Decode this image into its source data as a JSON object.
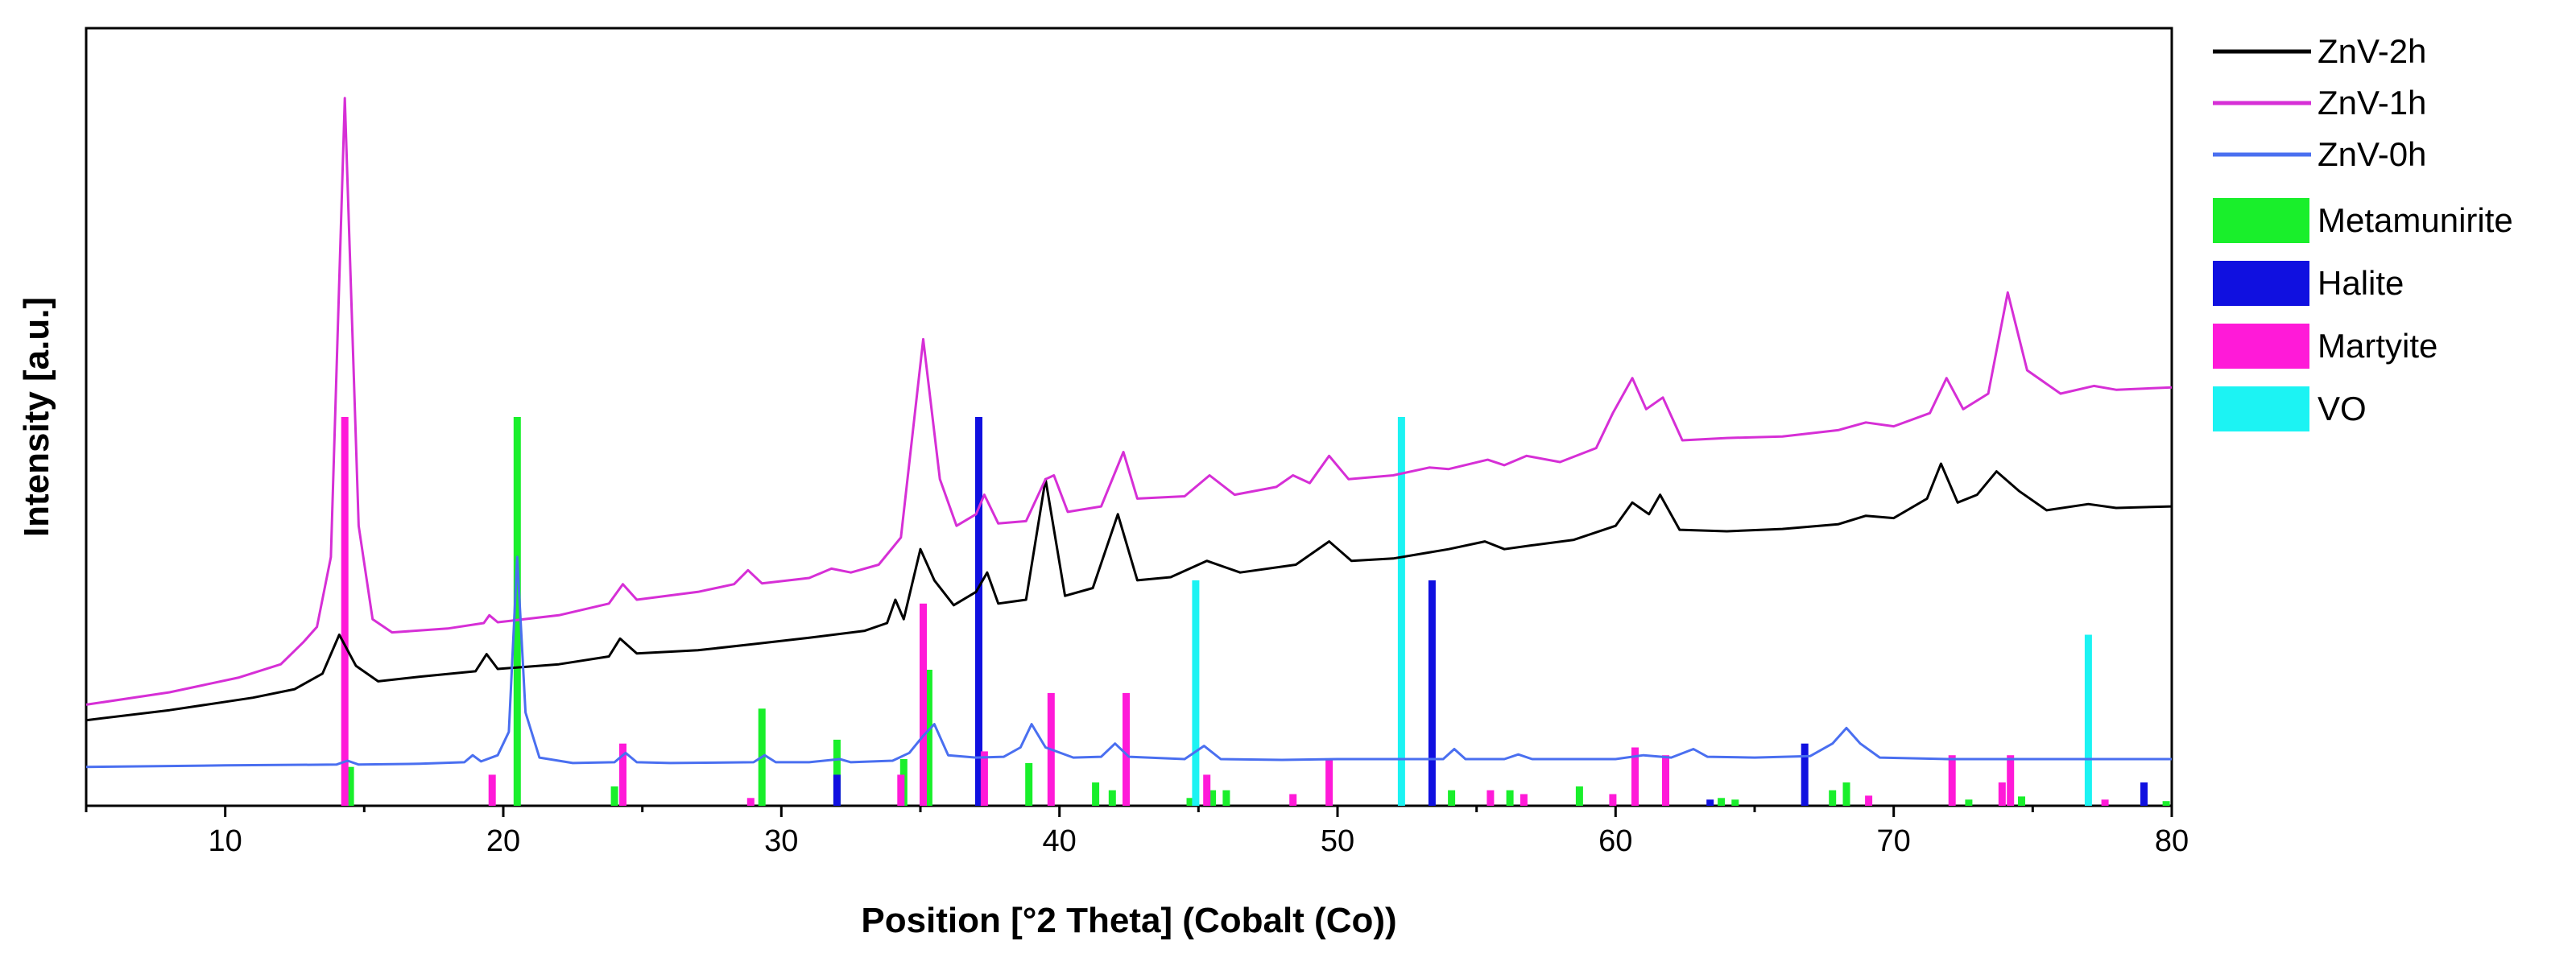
{
  "chart_data": {
    "type": "line",
    "xlabel": "Position [°2 Theta] (Cobalt (Co))",
    "ylabel": "Intensity [a.u.]",
    "xlim": [
      5,
      80
    ],
    "ylim": [
      0,
      100
    ],
    "y_ticks_shown": false,
    "grid": false,
    "legend_position": "outside-right",
    "x_ticks": [
      10,
      20,
      30,
      40,
      50,
      60,
      70,
      80
    ],
    "series": [
      {
        "name": "ZnV-2h",
        "color": "#000000",
        "points": [
          [
            5,
            11.0
          ],
          [
            8,
            12.3
          ],
          [
            11,
            13.9
          ],
          [
            12.5,
            15.0
          ],
          [
            13.5,
            17.0
          ],
          [
            14.1,
            22.0
          ],
          [
            14.7,
            18.0
          ],
          [
            15.5,
            16.0
          ],
          [
            17,
            16.6
          ],
          [
            19,
            17.3
          ],
          [
            19.4,
            19.5
          ],
          [
            19.8,
            17.6
          ],
          [
            22,
            18.2
          ],
          [
            23.8,
            19.2
          ],
          [
            24.2,
            21.5
          ],
          [
            24.8,
            19.6
          ],
          [
            27,
            20.0
          ],
          [
            29,
            20.8
          ],
          [
            31,
            21.6
          ],
          [
            33,
            22.5
          ],
          [
            33.8,
            23.5
          ],
          [
            34.1,
            26.5
          ],
          [
            34.4,
            24.0
          ],
          [
            35.0,
            33.0
          ],
          [
            35.5,
            29.0
          ],
          [
            36.2,
            25.8
          ],
          [
            37.0,
            27.5
          ],
          [
            37.4,
            30.0
          ],
          [
            37.8,
            26.0
          ],
          [
            38.8,
            26.5
          ],
          [
            39.5,
            42.0
          ],
          [
            40.2,
            27.0
          ],
          [
            41.2,
            28.0
          ],
          [
            42.1,
            37.5
          ],
          [
            42.8,
            29.0
          ],
          [
            44,
            29.4
          ],
          [
            45.3,
            31.5
          ],
          [
            46.5,
            30.0
          ],
          [
            48.5,
            31.0
          ],
          [
            49.7,
            34.0
          ],
          [
            50.5,
            31.5
          ],
          [
            52,
            31.8
          ],
          [
            54,
            33.0
          ],
          [
            55.3,
            34.0
          ],
          [
            56,
            33.0
          ],
          [
            57,
            33.5
          ],
          [
            58.5,
            34.2
          ],
          [
            60,
            36.0
          ],
          [
            60.6,
            39.0
          ],
          [
            61.2,
            37.5
          ],
          [
            61.6,
            40.0
          ],
          [
            62.3,
            35.5
          ],
          [
            64,
            35.3
          ],
          [
            66,
            35.6
          ],
          [
            68,
            36.2
          ],
          [
            69,
            37.3
          ],
          [
            70,
            37.0
          ],
          [
            71.2,
            39.5
          ],
          [
            71.7,
            44.0
          ],
          [
            72.3,
            39.0
          ],
          [
            73.0,
            40.0
          ],
          [
            73.7,
            43.0
          ],
          [
            74.5,
            40.5
          ],
          [
            75.5,
            38.0
          ],
          [
            77,
            38.8
          ],
          [
            78,
            38.3
          ],
          [
            80,
            38.5
          ]
        ]
      },
      {
        "name": "ZnV-1h",
        "color": "#d62fd6",
        "points": [
          [
            5,
            13.0
          ],
          [
            8,
            14.6
          ],
          [
            10.5,
            16.5
          ],
          [
            12,
            18.2
          ],
          [
            12.8,
            21.0
          ],
          [
            13.3,
            23.0
          ],
          [
            13.8,
            32.0
          ],
          [
            14.3,
            91.0
          ],
          [
            14.8,
            36.0
          ],
          [
            15.3,
            24.0
          ],
          [
            16,
            22.3
          ],
          [
            18,
            22.8
          ],
          [
            19.3,
            23.5
          ],
          [
            19.5,
            24.5
          ],
          [
            19.8,
            23.6
          ],
          [
            22,
            24.5
          ],
          [
            23.8,
            26.0
          ],
          [
            24.3,
            28.5
          ],
          [
            24.8,
            26.5
          ],
          [
            27,
            27.5
          ],
          [
            28.3,
            28.5
          ],
          [
            28.8,
            30.3
          ],
          [
            29.3,
            28.6
          ],
          [
            31,
            29.3
          ],
          [
            31.8,
            30.5
          ],
          [
            32.5,
            30.0
          ],
          [
            33.5,
            31.0
          ],
          [
            34.3,
            34.5
          ],
          [
            35.1,
            60.0
          ],
          [
            35.7,
            42.0
          ],
          [
            36.3,
            36.0
          ],
          [
            37.0,
            37.5
          ],
          [
            37.3,
            40.0
          ],
          [
            37.8,
            36.3
          ],
          [
            38.8,
            36.6
          ],
          [
            39.5,
            42.0
          ],
          [
            39.8,
            42.5
          ],
          [
            40.3,
            37.8
          ],
          [
            41.5,
            38.5
          ],
          [
            42.3,
            45.5
          ],
          [
            42.8,
            39.5
          ],
          [
            44.5,
            39.8
          ],
          [
            45.4,
            42.5
          ],
          [
            46.3,
            40.0
          ],
          [
            47.8,
            41.0
          ],
          [
            48.4,
            42.5
          ],
          [
            49.0,
            41.5
          ],
          [
            49.7,
            45.0
          ],
          [
            50.4,
            42.0
          ],
          [
            52,
            42.5
          ],
          [
            53.3,
            43.5
          ],
          [
            54,
            43.3
          ],
          [
            55.4,
            44.5
          ],
          [
            56,
            43.8
          ],
          [
            56.8,
            45.0
          ],
          [
            58,
            44.2
          ],
          [
            59.3,
            46.0
          ],
          [
            59.9,
            50.5
          ],
          [
            60.6,
            55.0
          ],
          [
            61.1,
            51.0
          ],
          [
            61.7,
            52.5
          ],
          [
            62.4,
            47.0
          ],
          [
            64,
            47.3
          ],
          [
            66,
            47.5
          ],
          [
            68,
            48.3
          ],
          [
            69.0,
            49.3
          ],
          [
            70,
            48.8
          ],
          [
            71.3,
            50.5
          ],
          [
            71.9,
            55.0
          ],
          [
            72.5,
            51.0
          ],
          [
            73.4,
            53.0
          ],
          [
            74.1,
            66.0
          ],
          [
            74.8,
            56.0
          ],
          [
            76,
            53.0
          ],
          [
            77.2,
            54.0
          ],
          [
            78,
            53.5
          ],
          [
            80,
            53.8
          ]
        ]
      },
      {
        "name": "ZnV-0h",
        "color": "#4a6ff0",
        "points": [
          [
            5,
            5.0
          ],
          [
            10,
            5.2
          ],
          [
            14,
            5.3
          ],
          [
            14.4,
            5.8
          ],
          [
            14.8,
            5.3
          ],
          [
            17,
            5.4
          ],
          [
            18.6,
            5.6
          ],
          [
            18.9,
            6.5
          ],
          [
            19.2,
            5.7
          ],
          [
            19.8,
            6.5
          ],
          [
            20.2,
            9.5
          ],
          [
            20.5,
            32.0
          ],
          [
            20.8,
            12.0
          ],
          [
            21.3,
            6.2
          ],
          [
            22.5,
            5.5
          ],
          [
            24,
            5.6
          ],
          [
            24.4,
            6.8
          ],
          [
            24.8,
            5.6
          ],
          [
            26,
            5.5
          ],
          [
            29,
            5.6
          ],
          [
            29.4,
            6.5
          ],
          [
            29.8,
            5.6
          ],
          [
            31,
            5.6
          ],
          [
            32.1,
            6.0
          ],
          [
            32.5,
            5.6
          ],
          [
            34,
            5.8
          ],
          [
            34.6,
            6.8
          ],
          [
            35.1,
            9.0
          ],
          [
            35.5,
            10.5
          ],
          [
            36,
            6.5
          ],
          [
            37,
            6.2
          ],
          [
            38,
            6.3
          ],
          [
            38.6,
            7.5
          ],
          [
            39.0,
            10.5
          ],
          [
            39.5,
            7.5
          ],
          [
            40.5,
            6.2
          ],
          [
            41.5,
            6.3
          ],
          [
            42.0,
            8.0
          ],
          [
            42.5,
            6.3
          ],
          [
            44.5,
            6.0
          ],
          [
            45.2,
            7.7
          ],
          [
            45.8,
            6.0
          ],
          [
            48,
            5.9
          ],
          [
            50,
            6.0
          ],
          [
            52,
            6.0
          ],
          [
            53.8,
            6.0
          ],
          [
            54.2,
            7.3
          ],
          [
            54.6,
            6.0
          ],
          [
            56,
            6.0
          ],
          [
            56.5,
            6.6
          ],
          [
            57,
            6.0
          ],
          [
            60,
            6.0
          ],
          [
            61,
            6.5
          ],
          [
            62,
            6.2
          ],
          [
            62.8,
            7.3
          ],
          [
            63.3,
            6.3
          ],
          [
            65,
            6.2
          ],
          [
            67,
            6.4
          ],
          [
            67.8,
            8.0
          ],
          [
            68.3,
            10.0
          ],
          [
            68.8,
            8.0
          ],
          [
            69.5,
            6.2
          ],
          [
            72,
            6.0
          ],
          [
            75,
            6.0
          ],
          [
            78,
            6.0
          ],
          [
            80,
            6.0
          ]
        ]
      }
    ],
    "reference_phases": [
      {
        "name": "Metamunirite",
        "color": "#19ef2b",
        "sticks": [
          [
            14.5,
            5.0
          ],
          [
            20.5,
            50.0
          ],
          [
            24.0,
            2.5
          ],
          [
            29.3,
            12.5
          ],
          [
            32.0,
            8.5
          ],
          [
            34.4,
            6.0
          ],
          [
            35.3,
            17.5
          ],
          [
            38.9,
            5.5
          ],
          [
            41.3,
            3.0
          ],
          [
            41.9,
            2.0
          ],
          [
            44.7,
            1.0
          ],
          [
            45.5,
            2.0
          ],
          [
            46.0,
            2.0
          ],
          [
            54.1,
            2.0
          ],
          [
            56.2,
            2.0
          ],
          [
            58.7,
            2.5
          ],
          [
            63.8,
            1.0
          ],
          [
            64.3,
            0.8
          ],
          [
            67.8,
            2.0
          ],
          [
            68.3,
            3.0
          ],
          [
            72.7,
            0.8
          ],
          [
            74.6,
            1.2
          ],
          [
            79.8,
            0.6
          ]
        ]
      },
      {
        "name": "Halite",
        "color": "#1010e0",
        "sticks": [
          [
            32.0,
            4.0
          ],
          [
            37.1,
            50.0
          ],
          [
            53.4,
            29.0
          ],
          [
            63.4,
            0.8
          ],
          [
            66.8,
            8.0
          ],
          [
            79.0,
            3.0
          ]
        ]
      },
      {
        "name": "Martyite",
        "color": "#ff1ad8",
        "sticks": [
          [
            14.3,
            50.0
          ],
          [
            19.6,
            4.0
          ],
          [
            24.3,
            8.0
          ],
          [
            28.9,
            1.0
          ],
          [
            34.3,
            4.0
          ],
          [
            35.1,
            26.0
          ],
          [
            37.3,
            7.0
          ],
          [
            39.7,
            14.5
          ],
          [
            42.4,
            14.5
          ],
          [
            45.3,
            4.0
          ],
          [
            48.4,
            1.5
          ],
          [
            49.7,
            6.0
          ],
          [
            55.5,
            2.0
          ],
          [
            56.7,
            1.5
          ],
          [
            59.9,
            1.5
          ],
          [
            60.7,
            7.5
          ],
          [
            61.8,
            6.5
          ],
          [
            69.1,
            1.3
          ],
          [
            72.1,
            6.5
          ],
          [
            73.9,
            3.0
          ],
          [
            74.2,
            6.5
          ],
          [
            77.6,
            0.8
          ]
        ]
      },
      {
        "name": "VO",
        "color": "#1cf3f3",
        "sticks": [
          [
            44.9,
            29.0
          ],
          [
            52.3,
            50.0
          ],
          [
            77.0,
            22.0
          ]
        ]
      }
    ]
  },
  "legend": {
    "line_entries": [
      {
        "label": "ZnV-2h",
        "color": "#000000"
      },
      {
        "label": "ZnV-1h",
        "color": "#d62fd6"
      },
      {
        "label": "ZnV-0h",
        "color": "#4a6ff0"
      }
    ],
    "box_entries": [
      {
        "label": "Metamunirite",
        "color": "#19ef2b"
      },
      {
        "label": "Halite",
        "color": "#1010e0"
      },
      {
        "label": "Martyite",
        "color": "#ff1ad8"
      },
      {
        "label": "VO",
        "color": "#1cf3f3"
      }
    ]
  }
}
